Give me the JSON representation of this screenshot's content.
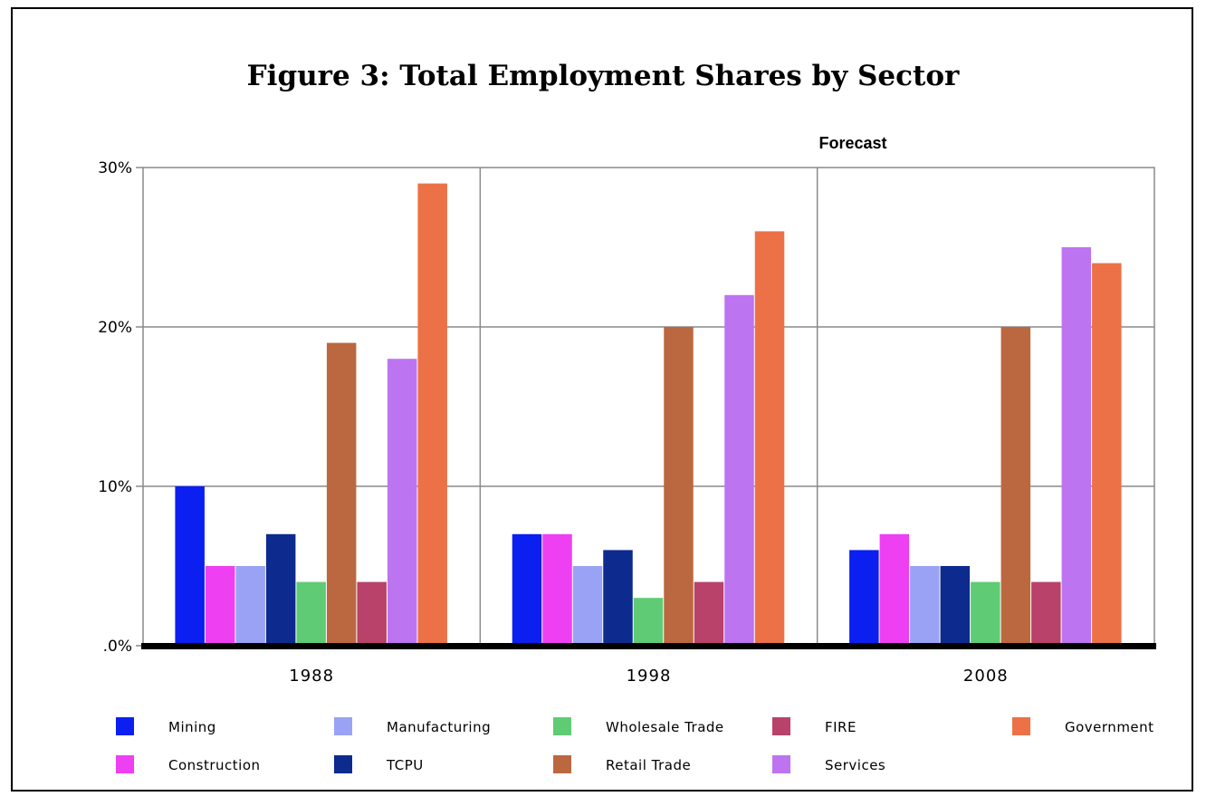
{
  "chart_data": {
    "type": "bar",
    "title": "Figure 3:  Total Employment Shares by Sector",
    "annotation": "Forecast",
    "xlabel": "",
    "ylabel": "",
    "categories": [
      "1988",
      "1998",
      "2008"
    ],
    "ylim": [
      0,
      30
    ],
    "yticks": [
      0,
      10,
      20,
      30
    ],
    "ytick_labels": [
      ".0%",
      "10%",
      "20%",
      "30%"
    ],
    "grid": true,
    "legend_position": "bottom",
    "series": [
      {
        "name": "Mining",
        "color": "#0a1ff0",
        "values": [
          10,
          7,
          6
        ]
      },
      {
        "name": "Construction",
        "color": "#ee3ff2",
        "values": [
          5,
          7,
          7
        ]
      },
      {
        "name": "Manufacturing",
        "color": "#9aa2f5",
        "values": [
          5,
          5,
          5
        ]
      },
      {
        "name": "TCPU",
        "color": "#0d2a8e",
        "values": [
          7,
          6,
          5
        ]
      },
      {
        "name": "Wholesale Trade",
        "color": "#5fcc75",
        "values": [
          4,
          3,
          4
        ]
      },
      {
        "name": "Retail Trade",
        "color": "#bb6840",
        "values": [
          19,
          20,
          20
        ]
      },
      {
        "name": "FIRE",
        "color": "#b8426a",
        "values": [
          4,
          4,
          4
        ]
      },
      {
        "name": "Services",
        "color": "#bd74f1",
        "values": [
          18,
          22,
          25
        ]
      },
      {
        "name": "Government",
        "color": "#ec7147",
        "values": [
          29,
          26,
          24
        ]
      }
    ],
    "legend_rows": [
      [
        "Mining",
        "Manufacturing",
        "Wholesale Trade",
        "FIRE",
        "Government"
      ],
      [
        "Construction",
        "TCPU",
        "Retail Trade",
        "Services"
      ]
    ]
  }
}
